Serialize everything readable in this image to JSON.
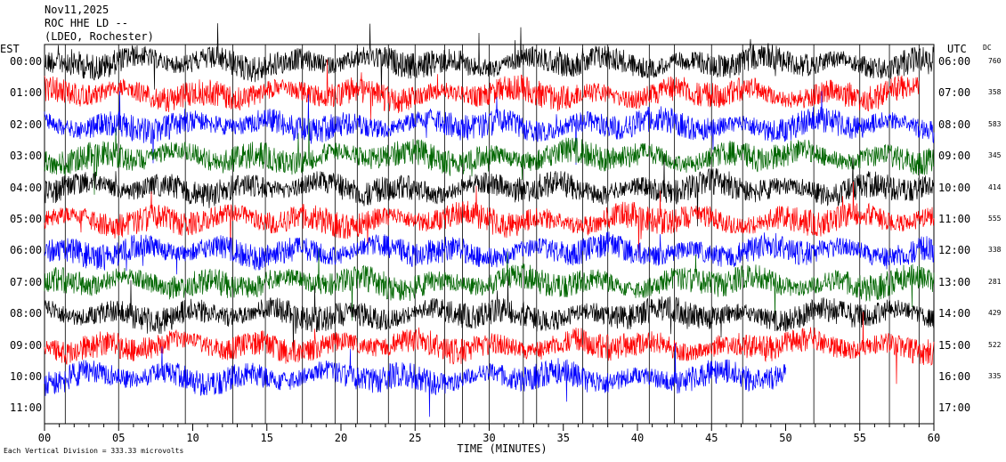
{
  "header": {
    "date": "Nov11,2025",
    "station": "ROC HHE LD --",
    "network": "(LDEO, Rochester)"
  },
  "left_timezone": "EST",
  "right_timezone": "UTC",
  "dc_label": "DC",
  "footer_note": "Each Vertical Division = 333.33 microvolts",
  "colors": {
    "black": "#000000",
    "red": "#ff0000",
    "blue": "#0000ff",
    "green": "#006600"
  },
  "chart_data": {
    "type": "line",
    "title": "",
    "xlabel": "TIME (MINUTES)",
    "xlim": [
      0,
      60
    ],
    "x_ticks": [
      "00",
      "05",
      "10",
      "15",
      "20",
      "25",
      "30",
      "35",
      "40",
      "45",
      "50",
      "55",
      "60"
    ],
    "rows": [
      {
        "est": "00:00",
        "utc": "06:00",
        "dc": "760",
        "color": "black",
        "end_minute": 60
      },
      {
        "est": "01:00",
        "utc": "07:00",
        "dc": "358",
        "color": "red",
        "end_minute": 59
      },
      {
        "est": "02:00",
        "utc": "08:00",
        "dc": "583",
        "color": "blue",
        "end_minute": 60
      },
      {
        "est": "03:00",
        "utc": "09:00",
        "dc": "345",
        "color": "green",
        "end_minute": 60
      },
      {
        "est": "04:00",
        "utc": "10:00",
        "dc": "414",
        "color": "black",
        "end_minute": 60
      },
      {
        "est": "05:00",
        "utc": "11:00",
        "dc": "555",
        "color": "red",
        "end_minute": 60
      },
      {
        "est": "06:00",
        "utc": "12:00",
        "dc": "338",
        "color": "blue",
        "end_minute": 60
      },
      {
        "est": "07:00",
        "utc": "13:00",
        "dc": "281",
        "color": "green",
        "end_minute": 60
      },
      {
        "est": "08:00",
        "utc": "14:00",
        "dc": "429",
        "color": "black",
        "end_minute": 60
      },
      {
        "est": "09:00",
        "utc": "15:00",
        "dc": "522",
        "color": "red",
        "end_minute": 60
      },
      {
        "est": "10:00",
        "utc": "16:00",
        "dc": "335",
        "color": "blue",
        "end_minute": 50
      }
    ],
    "empty_row": {
      "est": "11:00",
      "utc": "17:00"
    },
    "minute_lines": [
      1.4,
      5.0,
      9.5,
      12.7,
      14.9,
      17.4,
      19.6,
      21.1,
      23.2,
      25.0,
      27.0,
      28.2,
      30.0,
      32.3,
      33.2,
      36.3,
      38.0,
      40.8,
      42.5,
      45.0,
      47.1,
      51.9,
      55.0,
      57.0,
      59.0
    ]
  }
}
